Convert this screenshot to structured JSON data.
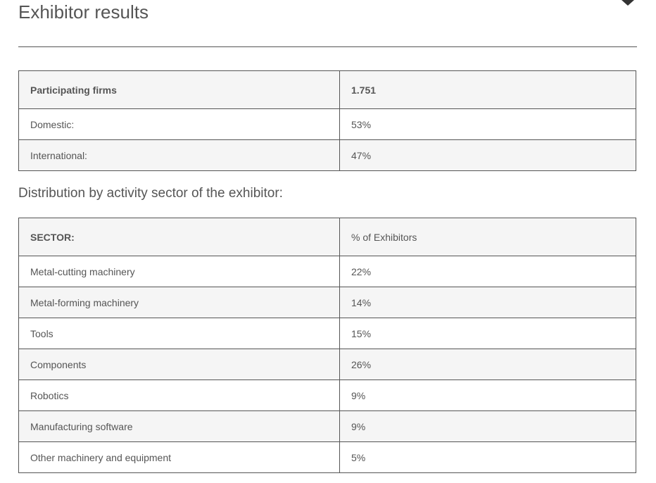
{
  "page": {
    "title": "Exhibitor results"
  },
  "firms_table": {
    "header": {
      "label": "Participating firms",
      "value": "1.751"
    },
    "rows": [
      {
        "label": "Domestic:",
        "value": "53%"
      },
      {
        "label": "International:",
        "value": "47%"
      }
    ]
  },
  "sector_heading": "Distribution by activity sector of the exhibitor:",
  "sector_table": {
    "header": {
      "label": "SECTOR:",
      "value": "% of Exhibitors"
    },
    "rows": [
      {
        "label": "Metal-cutting machinery",
        "value": "22%"
      },
      {
        "label": "Metal-forming machinery",
        "value": "14%"
      },
      {
        "label": "Tools",
        "value": "15%"
      },
      {
        "label": "Components",
        "value": "26%"
      },
      {
        "label": "Robotics",
        "value": "9%"
      },
      {
        "label": "Manufacturing software",
        "value": "9%"
      },
      {
        "label": "Other machinery and equipment",
        "value": "5%"
      }
    ]
  },
  "icons": {
    "corner": "chevron-down-icon"
  }
}
